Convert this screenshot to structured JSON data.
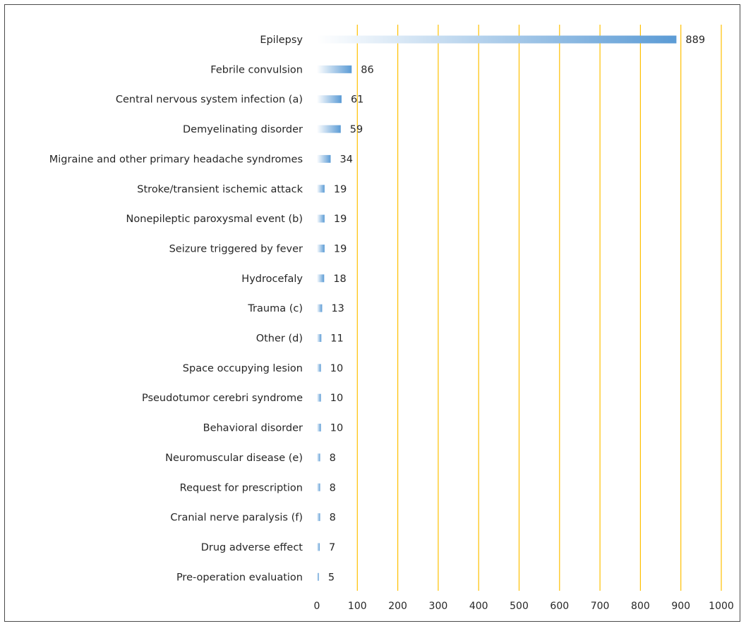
{
  "chart_data": {
    "type": "bar",
    "orientation": "horizontal",
    "categories": [
      "Epilepsy",
      "Febrile convulsion",
      "Central nervous system infection (a)",
      "Demyelinating disorder",
      "Migraine and other primary headache syndromes",
      "Stroke/transient ischemic attack",
      "Nonepileptic paroxysmal event (b)",
      "Seizure triggered by fever",
      "Hydrocefaly",
      "Trauma (c)",
      "Other (d)",
      "Space occupying lesion",
      "Pseudotumor cerebri syndrome",
      "Behavioral disorder",
      "Neuromuscular disease (e)",
      "Request for prescription",
      "Cranial nerve paralysis (f)",
      "Drug adverse effect",
      "Pre-operation evaluation"
    ],
    "values": [
      889,
      86,
      61,
      59,
      34,
      19,
      19,
      19,
      18,
      13,
      11,
      10,
      10,
      10,
      8,
      8,
      8,
      7,
      5
    ],
    "xlim": [
      0,
      1000
    ],
    "xticks": [
      "0",
      "100",
      "200",
      "300",
      "400",
      "500",
      "600",
      "700",
      "800",
      "900",
      "1000"
    ],
    "grid": "vertical",
    "colors": {
      "bar_dark": "#5b9bd5",
      "bar_light": "#ffffff",
      "grid": "#ffc000",
      "text": "#262626",
      "frame": "#4a4a4a"
    }
  }
}
